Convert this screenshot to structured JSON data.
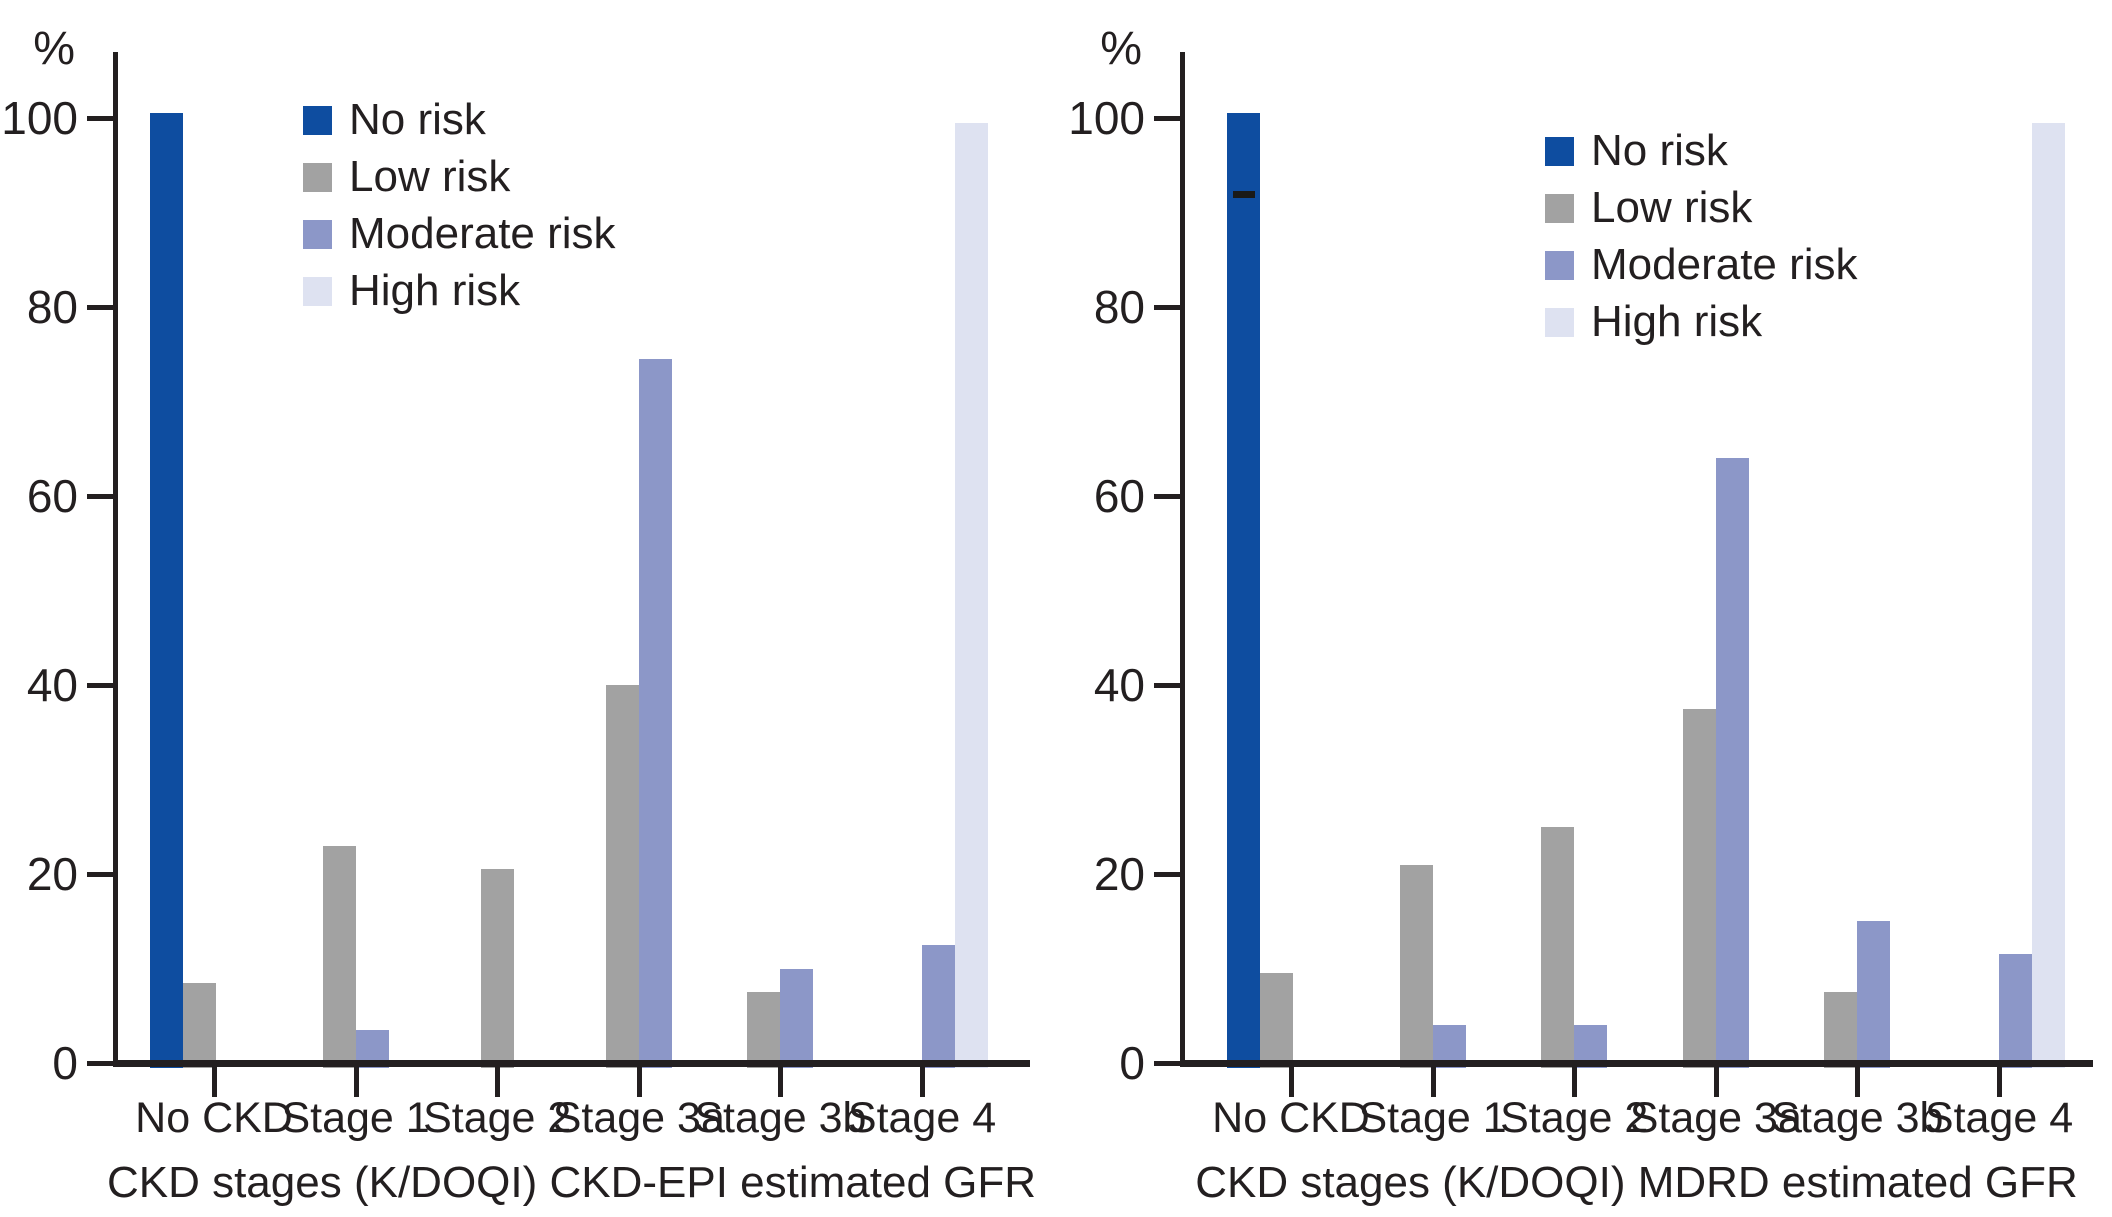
{
  "figure": {
    "description_colors": {
      "no_risk": "#0e4da0",
      "low_risk": "#a2a2a2",
      "moderate_risk": "#8c97c8",
      "high_risk": "#dee2f1",
      "axis_and_text": "#231f20"
    }
  },
  "chart_data": [
    {
      "type": "bar",
      "title": "",
      "xlabel": "CKD stages (K/DOQI) CKD-EPI estimated GFR",
      "ylabel": "%",
      "ylim": [
        0,
        100
      ],
      "yticks": [
        0,
        20,
        40,
        60,
        80,
        100
      ],
      "grid": "off",
      "legend_position": "inside-upper-left",
      "categories": [
        "No CKD",
        "Stage 1",
        "Stage 2",
        "Stage 3a",
        "Stage 3b",
        "Stage 4"
      ],
      "series": [
        {
          "name": "No risk",
          "color": "#0e4da0",
          "values": [
            100.5,
            null,
            null,
            null,
            null,
            null
          ]
        },
        {
          "name": "Low risk",
          "color": "#a2a2a2",
          "values": [
            8.5,
            23,
            20.5,
            40,
            7.5,
            null
          ]
        },
        {
          "name": "Moderate risk",
          "color": "#8c97c8",
          "values": [
            null,
            3.5,
            null,
            74.5,
            10,
            12.5
          ]
        },
        {
          "name": "High risk",
          "color": "#dee2f1",
          "values": [
            null,
            null,
            null,
            null,
            null,
            99.5
          ]
        }
      ],
      "annotations": []
    },
    {
      "type": "bar",
      "title": "",
      "xlabel": "CKD stages (K/DOQI) MDRD estimated GFR",
      "ylabel": "%",
      "ylim": [
        0,
        100
      ],
      "yticks": [
        0,
        20,
        40,
        60,
        80,
        100
      ],
      "grid": "off",
      "legend_position": "inside-upper-center",
      "categories": [
        "No CKD",
        "Stage 1",
        "Stage 2",
        "Stage 3a",
        "Stage 3b",
        "Stage 4"
      ],
      "series": [
        {
          "name": "No risk",
          "color": "#0e4da0",
          "values": [
            100.5,
            null,
            null,
            null,
            null,
            null
          ]
        },
        {
          "name": "Low risk",
          "color": "#a2a2a2",
          "values": [
            9.5,
            21,
            25,
            37.5,
            7.5,
            null
          ]
        },
        {
          "name": "Moderate risk",
          "color": "#8c97c8",
          "values": [
            null,
            4,
            4,
            64,
            15,
            11.5
          ]
        },
        {
          "name": "High risk",
          "color": "#dee2f1",
          "values": [
            null,
            null,
            null,
            null,
            null,
            99.5
          ]
        }
      ],
      "annotations": [
        {
          "type": "dash",
          "category": "No CKD",
          "series": "No risk",
          "value": 92,
          "color": "#1a1a18"
        }
      ]
    }
  ]
}
